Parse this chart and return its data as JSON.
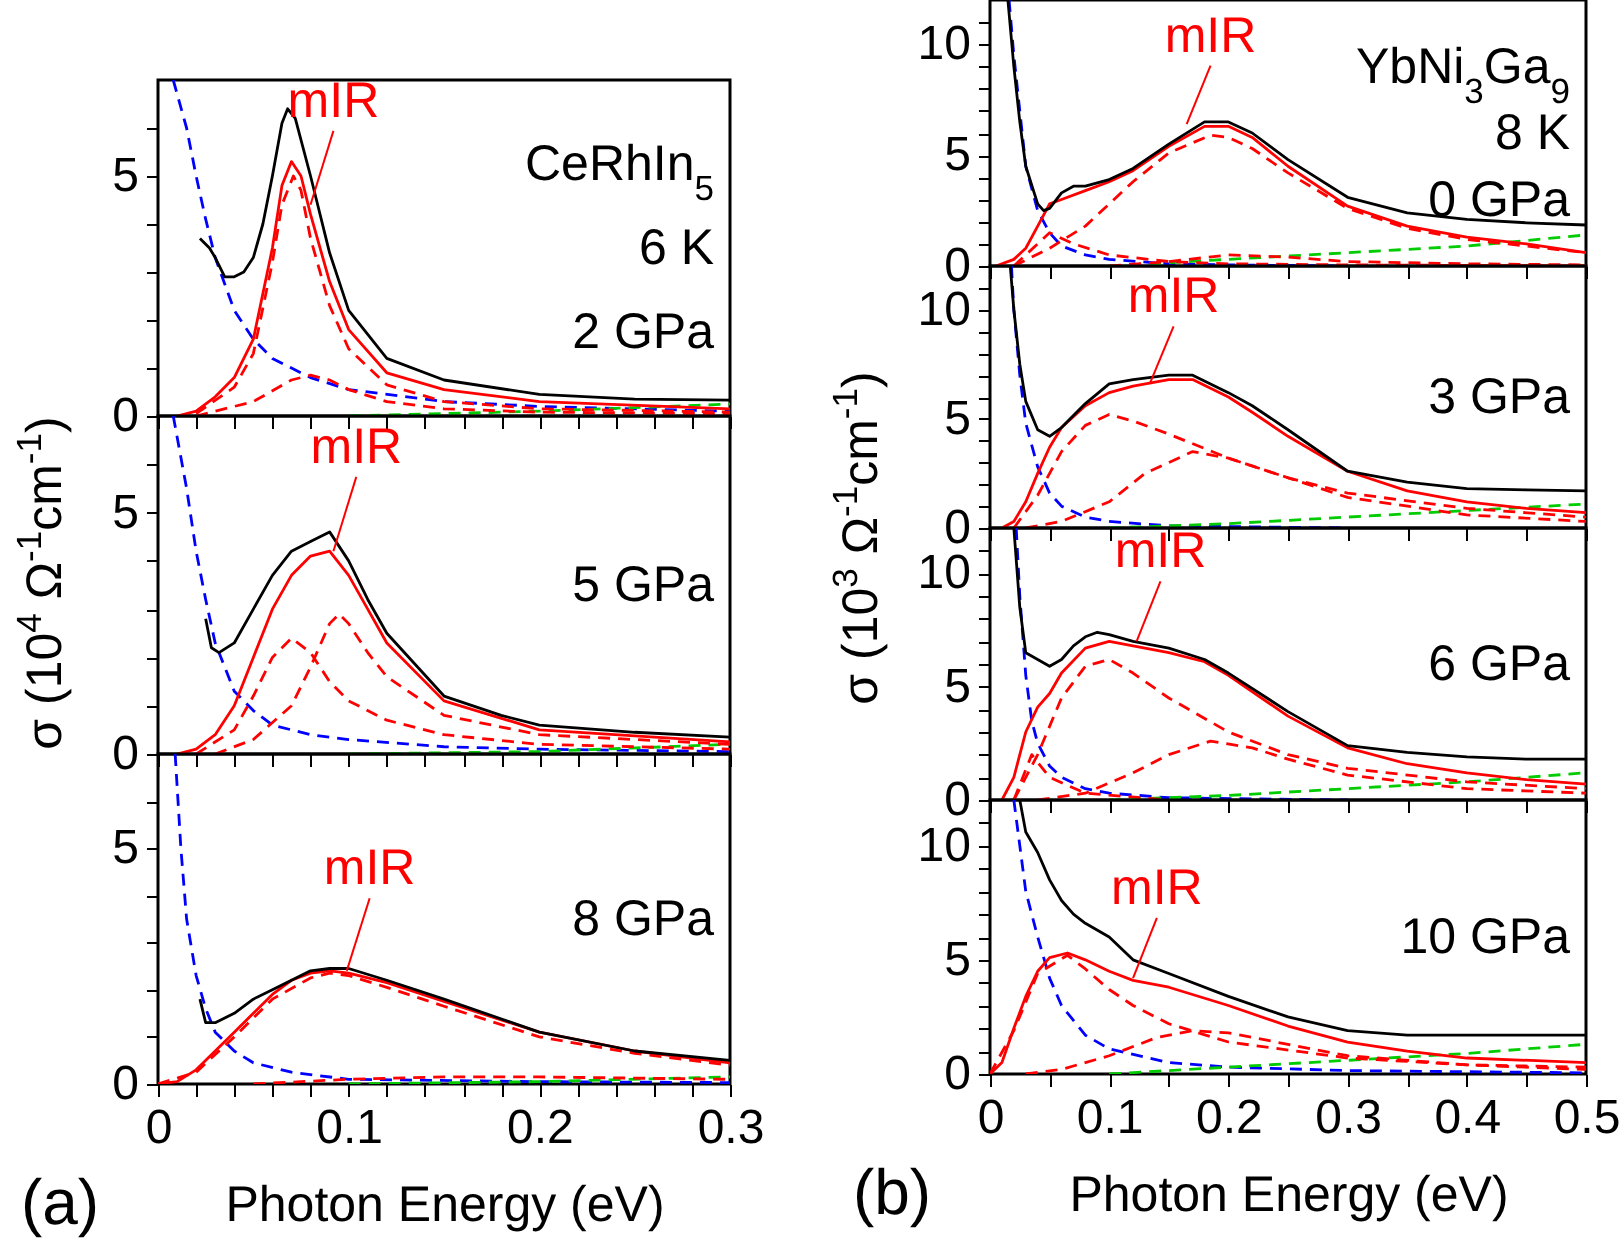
{
  "chart_data": [
    {
      "type": "line",
      "xlim": [
        0,
        0.3
      ],
      "ylim": [
        0,
        7
      ],
      "tick_labels": "y",
      "xticks": [
        0,
        {
          "value": 0.02,
          "label": null
        },
        {
          "value": 0.04,
          "label": null
        },
        {
          "value": 0.06,
          "label": null
        },
        {
          "value": 0.08,
          "label": null
        },
        0.1,
        {
          "value": 0.12,
          "label": null
        },
        {
          "value": 0.14,
          "label": null
        },
        {
          "value": 0.16,
          "label": null
        },
        {
          "value": 0.18,
          "label": null
        },
        0.2,
        {
          "value": 0.22,
          "label": null
        },
        {
          "value": 0.24,
          "label": null
        },
        {
          "value": 0.26,
          "label": null
        },
        {
          "value": 0.28,
          "label": null
        },
        0.3
      ],
      "yticks": [
        0,
        {
          "value": 1,
          "label": null
        },
        {
          "value": 2,
          "label": null
        },
        {
          "value": 3,
          "label": null
        },
        {
          "value": 4,
          "label": null
        },
        5,
        {
          "value": 6,
          "label": null
        }
      ],
      "annotations": [
        "CeRhIn$_{5}$",
        "6 K",
        "2 GPa",
        {
          "text": "mIR",
          "x": 0.08,
          "y": 4.4
        }
      ],
      "series": [
        {
          "color": "#0000ff",
          "line_style": "dashed",
          "x": [
            0.008,
            0.015,
            0.02,
            0.025,
            0.03,
            0.04,
            0.05,
            0.06,
            0.08,
            0.1,
            0.15,
            0.2,
            0.3
          ],
          "values": [
            7,
            6,
            5,
            4.1,
            3.3,
            2.2,
            1.6,
            1.2,
            0.8,
            0.55,
            0.3,
            0.2,
            0.1
          ]
        },
        {
          "color": "#00cc00",
          "line_style": "dashed",
          "x": [
            0.1,
            0.2,
            0.3
          ],
          "values": [
            0,
            0.1,
            0.25
          ]
        },
        {
          "color": "#ff0000",
          "line_style": "dashed",
          "x": [
            0.02,
            0.05,
            0.07,
            0.08,
            0.09,
            0.1,
            0.12,
            0.15,
            0.2,
            0.3
          ],
          "values": [
            0,
            0.3,
            0.75,
            0.85,
            0.75,
            0.55,
            0.3,
            0.15,
            0.08,
            0.05
          ]
        },
        {
          "color": "#ff0000",
          "line_style": "dashed",
          "x": [
            0.02,
            0.04,
            0.05,
            0.06,
            0.065,
            0.071,
            0.075,
            0.08,
            0.09,
            0.1,
            0.12,
            0.15,
            0.2,
            0.3
          ],
          "values": [
            0.05,
            0.6,
            1.3,
            3.2,
            4.4,
            5.0,
            4.7,
            3.7,
            2.3,
            1.4,
            0.65,
            0.3,
            0.15,
            0.08
          ]
        },
        {
          "color": "#ff0000",
          "line_style": "solid",
          "x": [
            0.01,
            0.02,
            0.03,
            0.04,
            0.05,
            0.06,
            0.065,
            0.07,
            0.075,
            0.08,
            0.09,
            0.1,
            0.12,
            0.15,
            0.2,
            0.3
          ],
          "values": [
            0,
            0.1,
            0.4,
            0.8,
            1.6,
            3.5,
            4.8,
            5.3,
            5.0,
            4.2,
            2.8,
            1.8,
            0.9,
            0.55,
            0.3,
            0.15
          ]
        },
        {
          "color": "#000000",
          "line_style": "solid",
          "x": [
            0.022,
            0.027,
            0.03,
            0.035,
            0.04,
            0.045,
            0.05,
            0.055,
            0.06,
            0.065,
            0.068,
            0.072,
            0.08,
            0.09,
            0.1,
            0.12,
            0.15,
            0.2,
            0.25,
            0.3
          ],
          "values": [
            3.7,
            3.5,
            3.3,
            2.9,
            2.9,
            3.0,
            3.3,
            4.0,
            5.0,
            6.1,
            6.4,
            6.2,
            5.0,
            3.4,
            2.2,
            1.2,
            0.75,
            0.45,
            0.35,
            0.33
          ]
        }
      ]
    },
    {
      "type": "line",
      "xlim": [
        0,
        0.3
      ],
      "ylim": [
        0,
        7
      ],
      "tick_labels": "y",
      "ylabel": "σ (10$^{4}$ Ω$^{-1}$cm$^{-1}$)",
      "xticks": [
        0,
        {
          "value": 0.02,
          "label": null
        },
        {
          "value": 0.04,
          "label": null
        },
        {
          "value": 0.06,
          "label": null
        },
        {
          "value": 0.08,
          "label": null
        },
        0.1,
        {
          "value": 0.12,
          "label": null
        },
        {
          "value": 0.14,
          "label": null
        },
        {
          "value": 0.16,
          "label": null
        },
        {
          "value": 0.18,
          "label": null
        },
        0.2,
        {
          "value": 0.22,
          "label": null
        },
        {
          "value": 0.24,
          "label": null
        },
        {
          "value": 0.26,
          "label": null
        },
        {
          "value": 0.28,
          "label": null
        },
        0.3
      ],
      "yticks": [
        0,
        {
          "value": 1,
          "label": null
        },
        {
          "value": 2,
          "label": null
        },
        {
          "value": 3,
          "label": null
        },
        {
          "value": 4,
          "label": null
        },
        5,
        {
          "value": 6,
          "label": null
        }
      ],
      "annotations": [
        "5 GPa",
        {
          "text": "mIR",
          "x": 0.092,
          "y": 4.2
        }
      ],
      "series": [
        {
          "color": "#0000ff",
          "line_style": "dashed",
          "x": [
            0.008,
            0.015,
            0.02,
            0.025,
            0.03,
            0.04,
            0.05,
            0.06,
            0.08,
            0.1,
            0.15,
            0.2,
            0.3
          ],
          "values": [
            7,
            5.5,
            4.2,
            3.2,
            2.3,
            1.3,
            0.9,
            0.6,
            0.4,
            0.3,
            0.15,
            0.1,
            0.05
          ]
        },
        {
          "color": "#00cc00",
          "line_style": "dashed",
          "x": [
            0.1,
            0.2,
            0.3
          ],
          "values": [
            0,
            0.05,
            0.2
          ]
        },
        {
          "color": "#ff0000",
          "line_style": "dashed",
          "x": [
            0.02,
            0.04,
            0.05,
            0.06,
            0.07,
            0.08,
            0.09,
            0.1,
            0.12,
            0.15,
            0.2,
            0.3
          ],
          "values": [
            0,
            0.5,
            1.2,
            2.0,
            2.4,
            2.1,
            1.5,
            1.1,
            0.7,
            0.4,
            0.2,
            0.1
          ]
        },
        {
          "color": "#ff0000",
          "line_style": "dashed",
          "x": [
            0.03,
            0.05,
            0.07,
            0.08,
            0.09,
            0.095,
            0.1,
            0.11,
            0.12,
            0.15,
            0.2,
            0.3
          ],
          "values": [
            0,
            0.3,
            1.0,
            1.8,
            2.7,
            2.9,
            2.7,
            2.1,
            1.6,
            0.8,
            0.4,
            0.2
          ]
        },
        {
          "color": "#ff0000",
          "line_style": "solid",
          "x": [
            0.01,
            0.02,
            0.03,
            0.04,
            0.05,
            0.06,
            0.07,
            0.08,
            0.09,
            0.1,
            0.11,
            0.12,
            0.15,
            0.2,
            0.3
          ],
          "values": [
            0,
            0.1,
            0.4,
            1.0,
            2.0,
            3.0,
            3.7,
            4.1,
            4.2,
            3.7,
            3.0,
            2.3,
            1.1,
            0.5,
            0.25
          ]
        },
        {
          "color": "#000000",
          "line_style": "solid",
          "x": [
            0.025,
            0.028,
            0.032,
            0.04,
            0.05,
            0.06,
            0.07,
            0.08,
            0.09,
            0.1,
            0.11,
            0.12,
            0.15,
            0.18,
            0.2,
            0.25,
            0.3
          ],
          "values": [
            2.8,
            2.2,
            2.1,
            2.3,
            3.0,
            3.7,
            4.2,
            4.4,
            4.6,
            4.0,
            3.2,
            2.5,
            1.2,
            0.8,
            0.6,
            0.45,
            0.35
          ]
        }
      ]
    },
    {
      "type": "line",
      "xlim": [
        0,
        0.3
      ],
      "ylim": [
        0,
        7
      ],
      "xlabel": "Photon Energy (eV)",
      "xticks": [
        0,
        {
          "value": 0.02,
          "label": null
        },
        {
          "value": 0.04,
          "label": null
        },
        {
          "value": 0.06,
          "label": null
        },
        {
          "value": 0.08,
          "label": null
        },
        0.1,
        {
          "value": 0.12,
          "label": null
        },
        {
          "value": 0.14,
          "label": null
        },
        {
          "value": 0.16,
          "label": null
        },
        {
          "value": 0.18,
          "label": null
        },
        0.2,
        {
          "value": 0.22,
          "label": null
        },
        {
          "value": 0.24,
          "label": null
        },
        {
          "value": 0.26,
          "label": null
        },
        {
          "value": 0.28,
          "label": null
        },
        0.3
      ],
      "yticks": [
        0,
        {
          "value": 1,
          "label": null
        },
        {
          "value": 2,
          "label": null
        },
        {
          "value": 3,
          "label": null
        },
        {
          "value": 4,
          "label": null
        },
        5,
        {
          "value": 6,
          "label": null
        }
      ],
      "annotations": [
        "(a)",
        "8 GPa",
        {
          "text": "mIR",
          "x": 0.099,
          "y": 2.4
        }
      ],
      "series": [
        {
          "color": "#0000ff",
          "line_style": "dashed",
          "x": [
            0.009,
            0.012,
            0.015,
            0.02,
            0.025,
            0.03,
            0.04,
            0.05,
            0.07,
            0.1,
            0.2,
            0.3
          ],
          "values": [
            7,
            5,
            3.5,
            2.3,
            1.6,
            1.1,
            0.7,
            0.45,
            0.25,
            0.1,
            0.05,
            0.03
          ]
        },
        {
          "color": "#00cc00",
          "line_style": "dashed",
          "x": [
            0.1,
            0.2,
            0.3
          ],
          "values": [
            0,
            0.05,
            0.15
          ]
        },
        {
          "color": "#ff0000",
          "line_style": "dashed",
          "x": [
            0.05,
            0.1,
            0.15,
            0.2,
            0.3
          ],
          "values": [
            0,
            0.1,
            0.15,
            0.15,
            0.1
          ]
        },
        {
          "color": "#ff0000",
          "line_style": "dashed",
          "x": [
            0,
            0.02,
            0.04,
            0.06,
            0.08,
            0.09,
            0.1,
            0.12,
            0.15,
            0.2,
            0.25,
            0.3
          ],
          "values": [
            0,
            0.25,
            1.0,
            1.8,
            2.25,
            2.35,
            2.3,
            2.05,
            1.65,
            1.0,
            0.65,
            0.4
          ]
        },
        {
          "color": "#ff0000",
          "line_style": "solid",
          "x": [
            0,
            0.01,
            0.02,
            0.03,
            0.04,
            0.05,
            0.06,
            0.07,
            0.08,
            0.09,
            0.1,
            0.12,
            0.15,
            0.2,
            0.25,
            0.3
          ],
          "values": [
            0,
            0.05,
            0.3,
            0.7,
            1.1,
            1.5,
            1.9,
            2.2,
            2.35,
            2.4,
            2.35,
            2.15,
            1.75,
            1.1,
            0.7,
            0.45
          ]
        },
        {
          "color": "#000000",
          "line_style": "solid",
          "x": [
            0.022,
            0.025,
            0.03,
            0.04,
            0.05,
            0.06,
            0.07,
            0.08,
            0.09,
            0.1,
            0.12,
            0.15,
            0.2,
            0.25,
            0.3
          ],
          "values": [
            1.8,
            1.3,
            1.3,
            1.5,
            1.8,
            2.0,
            2.2,
            2.4,
            2.45,
            2.45,
            2.2,
            1.8,
            1.1,
            0.7,
            0.5
          ]
        }
      ]
    },
    {
      "type": "line",
      "xlim": [
        0,
        0.5
      ],
      "ylim": [
        0,
        12
      ],
      "tick_labels": "y",
      "xticks": [
        0,
        {
          "value": 0.05,
          "label": null
        },
        0.1,
        {
          "value": 0.15,
          "label": null
        },
        0.2,
        {
          "value": 0.25,
          "label": null
        },
        0.3,
        {
          "value": 0.35,
          "label": null
        },
        0.4,
        {
          "value": 0.45,
          "label": null
        },
        0.5
      ],
      "yticks": [
        0,
        {
          "value": 1,
          "label": null
        },
        {
          "value": 2,
          "label": null
        },
        {
          "value": 3,
          "label": null
        },
        {
          "value": 4,
          "label": null
        },
        5,
        {
          "value": 6,
          "label": null
        },
        {
          "value": 7,
          "label": null
        },
        {
          "value": 8,
          "label": null
        },
        {
          "value": 9,
          "label": null
        },
        10,
        {
          "value": 11,
          "label": null
        }
      ],
      "annotations": [
        "YbNi$_{3}$Ga$_{9}$",
        "8 K",
        "0 GPa",
        {
          "text": "mIR",
          "x": 0.165,
          "y": 6.4
        }
      ],
      "series": [
        {
          "color": "#0000ff",
          "line_style": "dashed",
          "x": [
            0.016,
            0.02,
            0.025,
            0.03,
            0.04,
            0.05,
            0.06,
            0.08,
            0.1,
            0.15,
            0.2,
            0.3
          ],
          "values": [
            12,
            9.5,
            7,
            4.5,
            2.5,
            1.5,
            0.9,
            0.5,
            0.3,
            0.1,
            0.05,
            0
          ]
        },
        {
          "color": "#00cc00",
          "line_style": "dashed",
          "x": [
            0.1,
            0.2,
            0.3,
            0.4,
            0.5
          ],
          "values": [
            0,
            0.3,
            0.6,
            0.9,
            1.4
          ]
        },
        {
          "color": "#ff0000",
          "line_style": "dashed",
          "x": [
            0.1,
            0.15,
            0.2,
            0.25,
            0.3,
            0.4,
            0.5
          ],
          "values": [
            0,
            0.2,
            0.5,
            0.4,
            0.2,
            0.1,
            0.05
          ]
        },
        {
          "color": "#ff0000",
          "line_style": "dashed",
          "x": [
            0.02,
            0.04,
            0.05,
            0.07,
            0.1,
            0.15,
            0.2,
            0.3,
            0.5
          ],
          "values": [
            0,
            1.0,
            1.5,
            1.0,
            0.5,
            0.2,
            0.1,
            0.05,
            0
          ]
        },
        {
          "color": "#ff0000",
          "line_style": "dashed",
          "x": [
            0.02,
            0.05,
            0.08,
            0.1,
            0.12,
            0.15,
            0.185,
            0.2,
            0.22,
            0.25,
            0.3,
            0.35,
            0.4,
            0.5
          ],
          "values": [
            0,
            0.8,
            1.8,
            2.8,
            3.8,
            5.1,
            5.9,
            5.8,
            5.3,
            4.2,
            2.6,
            1.7,
            1.2,
            0.6
          ]
        },
        {
          "color": "#ff0000",
          "line_style": "solid",
          "x": [
            0.005,
            0.02,
            0.03,
            0.04,
            0.05,
            0.06,
            0.08,
            0.1,
            0.12,
            0.15,
            0.18,
            0.2,
            0.22,
            0.25,
            0.3,
            0.35,
            0.4,
            0.45,
            0.5
          ],
          "values": [
            0,
            0.3,
            0.8,
            1.8,
            2.8,
            3.0,
            3.4,
            3.8,
            4.3,
            5.4,
            6.3,
            6.3,
            5.8,
            4.5,
            2.7,
            1.8,
            1.3,
            1.0,
            0.6
          ]
        },
        {
          "color": "#000000",
          "line_style": "solid",
          "x": [
            0.015,
            0.02,
            0.025,
            0.03,
            0.04,
            0.045,
            0.05,
            0.06,
            0.07,
            0.08,
            0.1,
            0.12,
            0.15,
            0.18,
            0.2,
            0.22,
            0.25,
            0.3,
            0.35,
            0.4,
            0.45,
            0.5
          ],
          "values": [
            12,
            9,
            6.5,
            4.5,
            2.8,
            2.5,
            2.6,
            3.3,
            3.6,
            3.6,
            3.9,
            4.4,
            5.5,
            6.5,
            6.5,
            6.0,
            4.8,
            3.1,
            2.4,
            2.1,
            1.95,
            1.85
          ]
        }
      ]
    },
    {
      "type": "line",
      "xlim": [
        0,
        0.5
      ],
      "ylim": [
        0,
        12
      ],
      "tick_labels": "y",
      "ylabel": "σ (10$^{3}$ Ω$^{-1}$cm$^{-1}$)",
      "xticks": [
        0,
        {
          "value": 0.05,
          "label": null
        },
        0.1,
        {
          "value": 0.15,
          "label": null
        },
        0.2,
        {
          "value": 0.25,
          "label": null
        },
        0.3,
        {
          "value": 0.35,
          "label": null
        },
        0.4,
        {
          "value": 0.45,
          "label": null
        },
        0.5
      ],
      "yticks": [
        0,
        {
          "value": 1,
          "label": null
        },
        {
          "value": 2,
          "label": null
        },
        {
          "value": 3,
          "label": null
        },
        {
          "value": 4,
          "label": null
        },
        5,
        {
          "value": 6,
          "label": null
        },
        {
          "value": 7,
          "label": null
        },
        {
          "value": 8,
          "label": null
        },
        {
          "value": 9,
          "label": null
        },
        10,
        {
          "value": 11,
          "label": null
        }
      ],
      "annotations": [
        "3 GPa",
        {
          "text": "mIR",
          "x": 0.134,
          "y": 6.6
        }
      ],
      "series": [
        {
          "color": "#0000ff",
          "line_style": "dashed",
          "x": [
            0.018,
            0.02,
            0.025,
            0.03,
            0.04,
            0.05,
            0.06,
            0.08,
            0.1,
            0.15,
            0.3
          ],
          "values": [
            12,
            10,
            7,
            4.8,
            2.8,
            1.6,
            1.0,
            0.5,
            0.3,
            0.1,
            0
          ]
        },
        {
          "color": "#00cc00",
          "line_style": "dashed",
          "x": [
            0.1,
            0.2,
            0.3,
            0.4,
            0.5
          ],
          "values": [
            0,
            0.2,
            0.5,
            0.8,
            1.1
          ]
        },
        {
          "color": "#ff0000",
          "line_style": "dashed",
          "x": [
            0.02,
            0.04,
            0.06,
            0.08,
            0.1,
            0.12,
            0.15,
            0.2,
            0.25,
            0.3,
            0.4,
            0.5
          ],
          "values": [
            0,
            1.5,
            3.5,
            4.7,
            5.2,
            4.9,
            4.3,
            3.2,
            2.3,
            1.6,
            0.9,
            0.5
          ]
        },
        {
          "color": "#ff0000",
          "line_style": "dashed",
          "x": [
            0.03,
            0.06,
            0.1,
            0.13,
            0.17,
            0.2,
            0.25,
            0.3,
            0.4,
            0.5
          ],
          "values": [
            0,
            0.3,
            1.2,
            2.5,
            3.5,
            3.2,
            2.3,
            1.4,
            0.6,
            0.3
          ]
        },
        {
          "color": "#ff0000",
          "line_style": "solid",
          "x": [
            0.01,
            0.02,
            0.03,
            0.04,
            0.05,
            0.06,
            0.08,
            0.1,
            0.12,
            0.15,
            0.17,
            0.2,
            0.22,
            0.25,
            0.3,
            0.35,
            0.4,
            0.45,
            0.5
          ],
          "values": [
            0,
            0.3,
            1.2,
            2.5,
            3.7,
            4.6,
            5.6,
            6.2,
            6.5,
            6.8,
            6.8,
            6.0,
            5.3,
            4.2,
            2.6,
            1.7,
            1.2,
            0.9,
            0.7
          ]
        },
        {
          "color": "#000000",
          "line_style": "solid",
          "x": [
            0.017,
            0.02,
            0.025,
            0.03,
            0.04,
            0.05,
            0.06,
            0.08,
            0.1,
            0.12,
            0.15,
            0.17,
            0.2,
            0.22,
            0.25,
            0.3,
            0.35,
            0.4,
            0.45,
            0.5
          ],
          "values": [
            12,
            10,
            7.5,
            5.8,
            4.5,
            4.2,
            4.6,
            5.7,
            6.6,
            6.8,
            7.0,
            7.0,
            6.2,
            5.6,
            4.5,
            2.6,
            2.1,
            1.8,
            1.75,
            1.7
          ]
        }
      ]
    },
    {
      "type": "line",
      "xlim": [
        0,
        0.5
      ],
      "ylim": [
        0,
        12
      ],
      "tick_labels": "y",
      "xticks": [
        0,
        {
          "value": 0.05,
          "label": null
        },
        0.1,
        {
          "value": 0.15,
          "label": null
        },
        0.2,
        {
          "value": 0.25,
          "label": null
        },
        0.3,
        {
          "value": 0.35,
          "label": null
        },
        0.4,
        {
          "value": 0.45,
          "label": null
        },
        0.5
      ],
      "yticks": [
        0,
        {
          "value": 1,
          "label": null
        },
        {
          "value": 2,
          "label": null
        },
        {
          "value": 3,
          "label": null
        },
        {
          "value": 4,
          "label": null
        },
        5,
        {
          "value": 6,
          "label": null
        },
        {
          "value": 7,
          "label": null
        },
        {
          "value": 8,
          "label": null
        },
        {
          "value": 9,
          "label": null
        },
        10,
        {
          "value": 11,
          "label": null
        }
      ],
      "annotations": [
        "6 GPa",
        {
          "text": "mIR",
          "x": 0.123,
          "y": 7.0
        }
      ],
      "series": [
        {
          "color": "#0000ff",
          "line_style": "dashed",
          "x": [
            0.022,
            0.025,
            0.03,
            0.035,
            0.04,
            0.05,
            0.06,
            0.08,
            0.1,
            0.15,
            0.3
          ],
          "values": [
            12,
            9,
            5.5,
            3.5,
            2.5,
            1.5,
            1.0,
            0.5,
            0.3,
            0.1,
            0
          ]
        },
        {
          "color": "#00cc00",
          "line_style": "dashed",
          "x": [
            0.1,
            0.2,
            0.3,
            0.4,
            0.5
          ],
          "values": [
            0,
            0.2,
            0.5,
            0.8,
            1.2
          ]
        },
        {
          "color": "#ff0000",
          "line_style": "dashed",
          "x": [
            0.02,
            0.035,
            0.05,
            0.08,
            0.15
          ],
          "values": [
            0,
            2.0,
            1.0,
            0.3,
            0
          ]
        },
        {
          "color": "#ff0000",
          "line_style": "dashed",
          "x": [
            0.02,
            0.04,
            0.06,
            0.08,
            0.1,
            0.12,
            0.15,
            0.2,
            0.25,
            0.3,
            0.4,
            0.5
          ],
          "values": [
            0,
            2.0,
            4.5,
            5.9,
            6.2,
            5.6,
            4.5,
            3.0,
            2.0,
            1.4,
            0.8,
            0.5
          ]
        },
        {
          "color": "#ff0000",
          "line_style": "dashed",
          "x": [
            0.04,
            0.08,
            0.12,
            0.15,
            0.185,
            0.22,
            0.25,
            0.3,
            0.4,
            0.5
          ],
          "values": [
            0,
            0.3,
            1.2,
            2.0,
            2.6,
            2.3,
            1.8,
            1.1,
            0.5,
            0.3
          ]
        },
        {
          "color": "#ff0000",
          "line_style": "solid",
          "x": [
            0.01,
            0.02,
            0.03,
            0.04,
            0.05,
            0.06,
            0.08,
            0.1,
            0.12,
            0.15,
            0.18,
            0.2,
            0.25,
            0.3,
            0.35,
            0.4,
            0.45,
            0.5
          ],
          "values": [
            0,
            1.0,
            3.0,
            4.1,
            4.7,
            5.6,
            6.7,
            7.0,
            6.8,
            6.5,
            6.1,
            5.5,
            3.7,
            2.3,
            1.6,
            1.2,
            0.9,
            0.7
          ]
        },
        {
          "color": "#000000",
          "line_style": "solid",
          "x": [
            0.02,
            0.025,
            0.03,
            0.04,
            0.05,
            0.06,
            0.07,
            0.08,
            0.09,
            0.1,
            0.12,
            0.15,
            0.18,
            0.2,
            0.25,
            0.3,
            0.35,
            0.4,
            0.45,
            0.5
          ],
          "values": [
            12,
            8.5,
            6.5,
            6.2,
            5.9,
            6.2,
            6.8,
            7.2,
            7.4,
            7.3,
            7.0,
            6.7,
            6.2,
            5.6,
            3.9,
            2.4,
            2.1,
            1.9,
            1.8,
            1.8
          ]
        }
      ]
    },
    {
      "type": "line",
      "xlim": [
        0,
        0.5
      ],
      "ylim": [
        0,
        12
      ],
      "xlabel": "Photon Energy (eV)",
      "xticks": [
        0,
        {
          "value": 0.05,
          "label": null
        },
        0.1,
        {
          "value": 0.15,
          "label": null
        },
        0.2,
        {
          "value": 0.25,
          "label": null
        },
        0.3,
        {
          "value": 0.35,
          "label": null
        },
        0.4,
        {
          "value": 0.45,
          "label": null
        },
        0.5
      ],
      "yticks": [
        0,
        {
          "value": 1,
          "label": null
        },
        {
          "value": 2,
          "label": null
        },
        {
          "value": 3,
          "label": null
        },
        {
          "value": 4,
          "label": null
        },
        5,
        {
          "value": 6,
          "label": null
        },
        {
          "value": 7,
          "label": null
        },
        {
          "value": 8,
          "label": null
        },
        {
          "value": 9,
          "label": null
        },
        10,
        {
          "value": 11,
          "label": null
        }
      ],
      "annotations": [
        "(b)",
        "10 GPa",
        {
          "text": "mIR",
          "x": 0.12,
          "y": 4.2
        }
      ],
      "series": [
        {
          "color": "#0000ff",
          "line_style": "dashed",
          "x": [
            0.02,
            0.025,
            0.03,
            0.04,
            0.05,
            0.06,
            0.08,
            0.1,
            0.15,
            0.2,
            0.3,
            0.5
          ],
          "values": [
            12,
            10,
            8,
            6,
            4.2,
            3.0,
            1.7,
            1.1,
            0.5,
            0.3,
            0.15,
            0.05
          ]
        },
        {
          "color": "#00cc00",
          "line_style": "dashed",
          "x": [
            0.1,
            0.2,
            0.3,
            0.4,
            0.5
          ],
          "values": [
            0,
            0.3,
            0.6,
            0.9,
            1.3
          ]
        },
        {
          "color": "#ff0000",
          "line_style": "dashed",
          "x": [
            0,
            0.02,
            0.04,
            0.065,
            0.08,
            0.1,
            0.12,
            0.15,
            0.2,
            0.3,
            0.4,
            0.5
          ],
          "values": [
            0,
            1.9,
            4.4,
            5.2,
            4.6,
            3.7,
            3.0,
            2.2,
            1.4,
            0.7,
            0.4,
            0.3
          ]
        },
        {
          "color": "#ff0000",
          "line_style": "dashed",
          "x": [
            0.03,
            0.06,
            0.1,
            0.14,
            0.17,
            0.2,
            0.25,
            0.3,
            0.4,
            0.5
          ],
          "values": [
            0,
            0.2,
            0.8,
            1.6,
            1.9,
            1.8,
            1.3,
            0.8,
            0.4,
            0.2
          ]
        },
        {
          "color": "#ff0000",
          "line_style": "solid",
          "x": [
            0,
            0.01,
            0.02,
            0.03,
            0.04,
            0.05,
            0.065,
            0.08,
            0.1,
            0.12,
            0.15,
            0.2,
            0.25,
            0.3,
            0.35,
            0.4,
            0.5
          ],
          "values": [
            0,
            0.5,
            2.0,
            3.4,
            4.5,
            5.1,
            5.3,
            5.0,
            4.5,
            4.1,
            3.8,
            3.0,
            2.1,
            1.4,
            1.0,
            0.7,
            0.5
          ]
        },
        {
          "color": "#000000",
          "line_style": "solid",
          "x": [
            0.025,
            0.03,
            0.04,
            0.05,
            0.06,
            0.07,
            0.08,
            0.1,
            0.12,
            0.15,
            0.2,
            0.25,
            0.3,
            0.35,
            0.4,
            0.5
          ],
          "values": [
            12,
            10.6,
            9.7,
            8.5,
            7.6,
            7.0,
            6.6,
            6.0,
            5.0,
            4.4,
            3.4,
            2.5,
            1.9,
            1.7,
            1.7,
            1.7
          ]
        }
      ]
    }
  ]
}
